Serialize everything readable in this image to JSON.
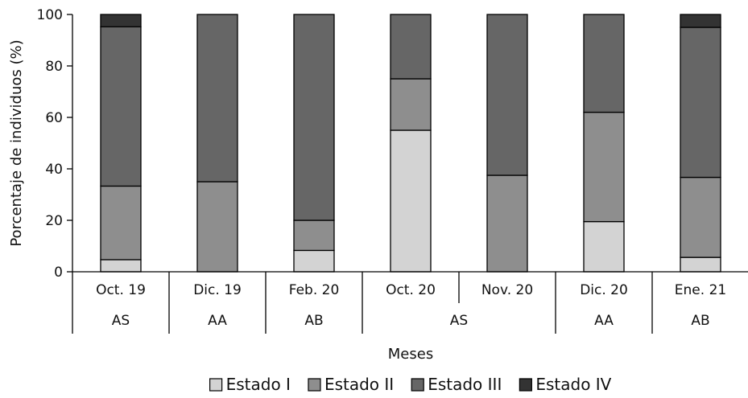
{
  "chart_data": {
    "type": "bar",
    "stacked": true,
    "xlabel": "Meses",
    "ylabel": "Porcentaje de individuos (%)",
    "ylim": [
      0,
      100
    ],
    "yticks": [
      0,
      20,
      40,
      60,
      80,
      100
    ],
    "grid": false,
    "legend_position": "bottom",
    "categories": [
      "Oct. 19",
      "Dic. 19",
      "Feb. 20",
      "Oct. 20",
      "Nov. 20",
      "Dic. 20",
      "Ene. 21"
    ],
    "groups": [
      {
        "label": "AS",
        "categories": [
          "Oct. 19"
        ]
      },
      {
        "label": "AA",
        "categories": [
          "Dic. 19"
        ]
      },
      {
        "label": "AB",
        "categories": [
          "Feb. 20"
        ]
      },
      {
        "label": "AS",
        "categories": [
          "Oct. 20",
          "Nov. 20"
        ]
      },
      {
        "label": "AA",
        "categories": [
          "Dic. 20"
        ]
      },
      {
        "label": "AB",
        "categories": [
          "Ene. 21"
        ]
      }
    ],
    "series": [
      {
        "name": "Estado I",
        "color": "#d3d3d3",
        "values": [
          4.7,
          0,
          8.3,
          55,
          0,
          19.5,
          5.6
        ]
      },
      {
        "name": "Estado II",
        "color": "#8e8e8e",
        "values": [
          28.6,
          35,
          11.7,
          20,
          37.5,
          42.5,
          31.1
        ]
      },
      {
        "name": "Estado III",
        "color": "#666666",
        "values": [
          61.9,
          65,
          80,
          25,
          62.5,
          38,
          58.3
        ]
      },
      {
        "name": "Estado IV",
        "color": "#333333",
        "values": [
          4.8,
          0,
          0,
          0,
          0,
          0,
          5
        ]
      }
    ]
  }
}
